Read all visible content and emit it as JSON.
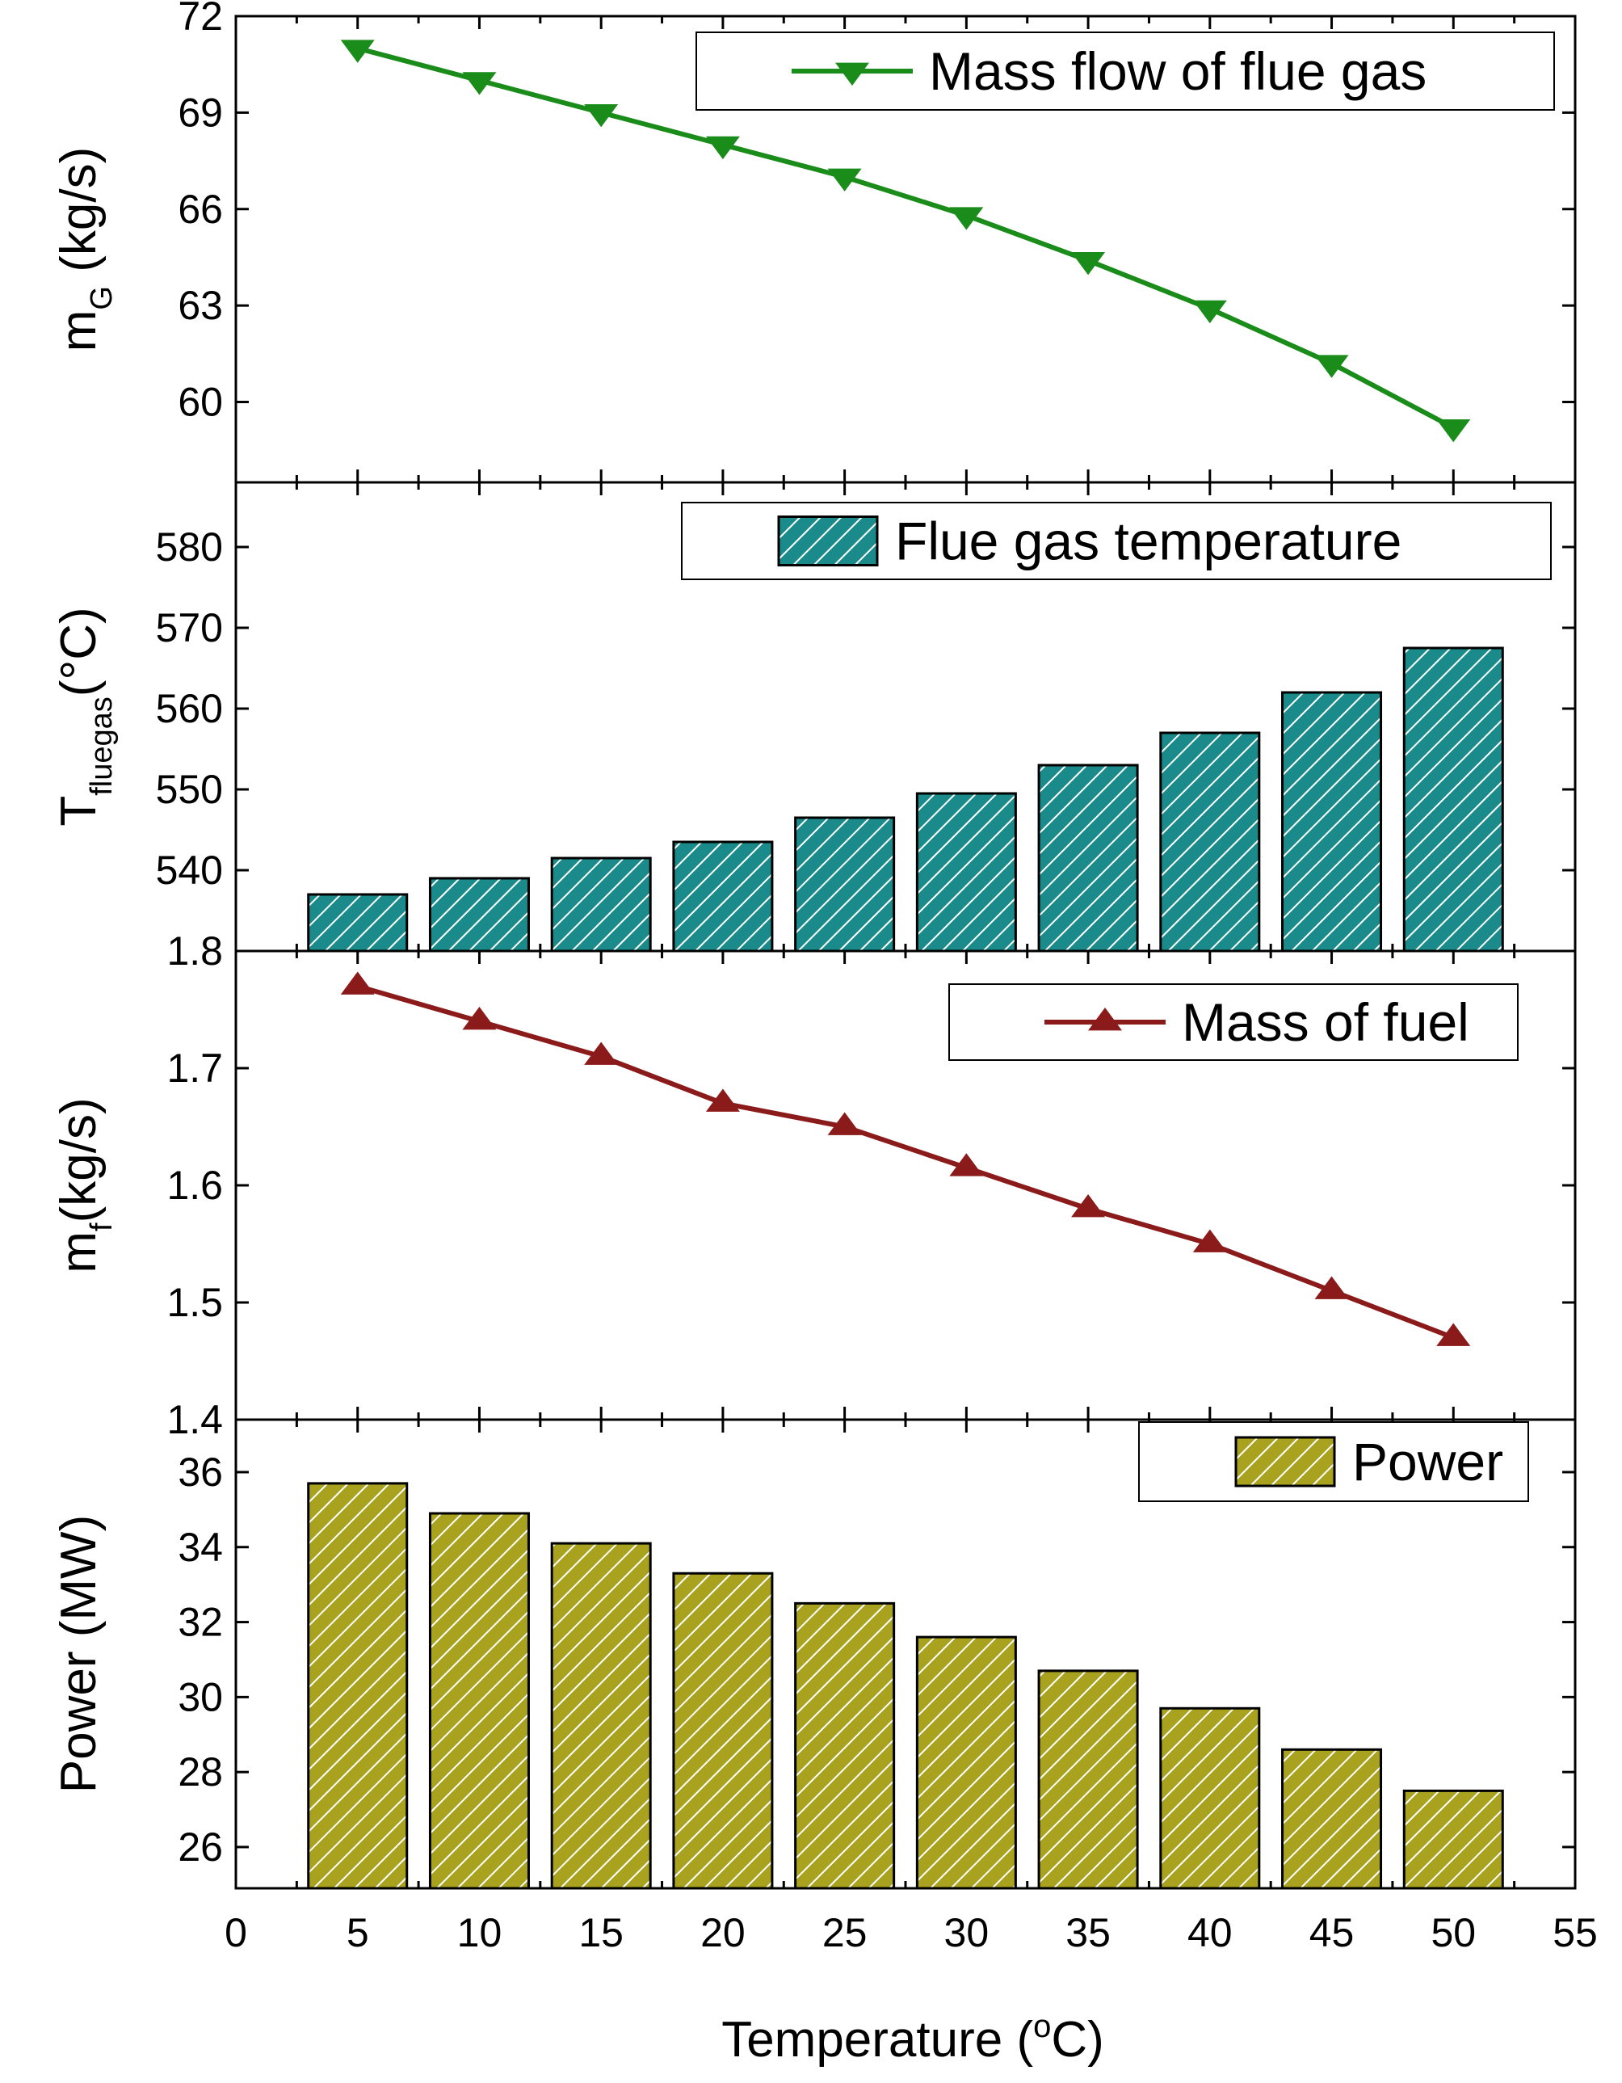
{
  "chart_data": [
    {
      "type": "line",
      "panel": "mass-flow",
      "title": "",
      "x": [
        5,
        10,
        15,
        20,
        25,
        30,
        35,
        40,
        45,
        50
      ],
      "series": [
        {
          "name": "Mass flow of flue gas",
          "values": [
            71.0,
            70.0,
            69.0,
            68.0,
            67.0,
            65.8,
            64.4,
            62.9,
            61.2,
            59.2
          ],
          "color": "#1a8c1a",
          "marker": "triangle-down"
        }
      ],
      "ylabel_main": "m",
      "ylabel_sub": "G",
      "ylabel_unit": " (kg/s)",
      "ylim": [
        57.5,
        72
      ],
      "yticks": [
        "60",
        "63",
        "66",
        "69",
        "72"
      ],
      "legend_position": "top-right"
    },
    {
      "type": "bar",
      "panel": "flue-gas-temperature",
      "title": "",
      "categories": [
        5,
        10,
        15,
        20,
        25,
        30,
        35,
        40,
        45,
        50
      ],
      "series": [
        {
          "name": "Flue gas temperature",
          "values": [
            537.0,
            539.0,
            541.5,
            543.5,
            546.5,
            549.5,
            553.0,
            557.0,
            562.0,
            567.5
          ],
          "color": "#1a8a8a",
          "pattern": "diagonal-hatch"
        }
      ],
      "ylabel_main": "T",
      "ylabel_sub": "fluegas",
      "ylabel_unit": "(°C)",
      "ylim": [
        530,
        588
      ],
      "yticks": [
        "540",
        "550",
        "560",
        "570",
        "580"
      ],
      "legend_position": "top-right"
    },
    {
      "type": "line",
      "panel": "mass-of-fuel",
      "title": "",
      "x": [
        5,
        10,
        15,
        20,
        25,
        30,
        35,
        40,
        45,
        50
      ],
      "series": [
        {
          "name": "Mass of fuel",
          "values": [
            1.77,
            1.74,
            1.71,
            1.67,
            1.65,
            1.615,
            1.58,
            1.55,
            1.51,
            1.47
          ],
          "color": "#8b1a1a",
          "marker": "triangle-up"
        }
      ],
      "ylabel_main": "m",
      "ylabel_sub": "f",
      "ylabel_unit": "(kg/s)",
      "ylim": [
        1.4,
        1.8
      ],
      "yticks": [
        "1.4",
        "1.5",
        "1.6",
        "1.7",
        "1.8"
      ],
      "legend_position": "top-right"
    },
    {
      "type": "bar",
      "panel": "power",
      "title": "",
      "categories": [
        5,
        10,
        15,
        20,
        25,
        30,
        35,
        40,
        45,
        50
      ],
      "series": [
        {
          "name": "Power",
          "values": [
            35.7,
            34.9,
            34.1,
            33.3,
            32.5,
            31.6,
            30.7,
            29.7,
            28.6,
            27.5
          ],
          "color": "#a8a21e",
          "pattern": "diagonal-hatch"
        }
      ],
      "ylabel_main": "Power (MW)",
      "ylabel_sub": "",
      "ylabel_unit": "",
      "ylim": [
        24.9,
        37.4
      ],
      "yticks": [
        "26",
        "28",
        "30",
        "32",
        "34",
        "36"
      ],
      "legend_position": "top-right"
    }
  ],
  "x_axis": {
    "title_prefix": "Temperature (",
    "title_sup": "o",
    "title_suffix": "C)",
    "xlim": [
      0,
      55
    ],
    "ticks": [
      "0",
      "5",
      "10",
      "15",
      "20",
      "25",
      "30",
      "35",
      "40",
      "45",
      "50",
      "55"
    ]
  }
}
